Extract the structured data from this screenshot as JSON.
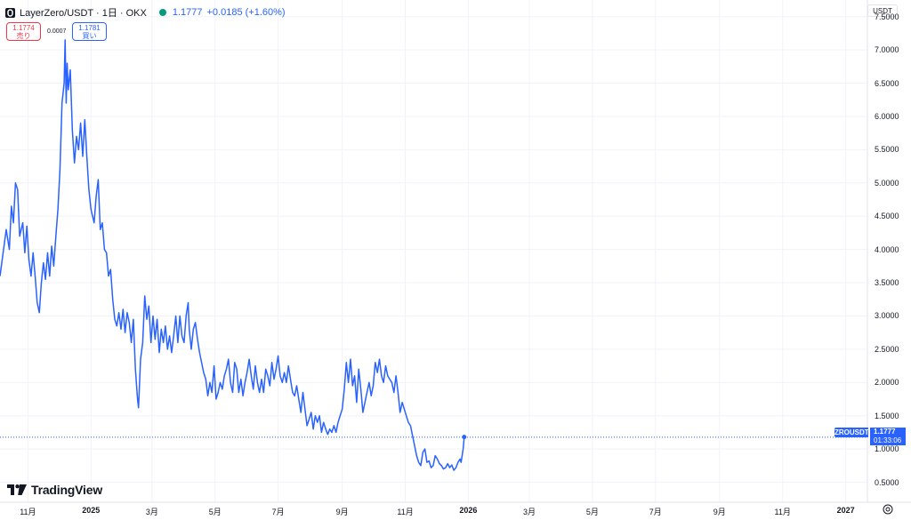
{
  "header": {
    "title": "LayerZero/USDT · 1日 · OKX",
    "last": "1.1777",
    "change": "+0.0185 (+1.60%)"
  },
  "trade": {
    "sell_price": "1.1774",
    "sell_label": "売り",
    "spread": "0.0007",
    "buy_price": "1.1781",
    "buy_label": "買い"
  },
  "price_scale": {
    "currency": "USDT"
  },
  "price_tag": {
    "symbol": "ZROUSDT",
    "price": "1.1777",
    "countdown": "01:33:06"
  },
  "branding": {
    "name": "TradingView"
  },
  "colors": {
    "line": "#2962ff",
    "grid": "#f0f3fa",
    "sell": "#f23645",
    "buy": "#2962ff",
    "live": "#089981"
  },
  "chart_data": {
    "type": "line",
    "symbol": "ZROUSDT",
    "timeframe": "1日",
    "exchange": "OKX",
    "y_axis": {
      "range": [
        0.2,
        7.75
      ],
      "ticks": [
        "0.5000",
        "1.0000",
        "1.5000",
        "2.0000",
        "2.5000",
        "3.0000",
        "3.5000",
        "4.0000",
        "4.5000",
        "5.0000",
        "5.5000",
        "6.0000",
        "6.5000",
        "7.0000",
        "7.5000"
      ]
    },
    "x_axis": {
      "range": [
        "2024-10-05",
        "2027-01-22"
      ],
      "ticks": [
        {
          "date": "2024-11-01",
          "label": "11月",
          "bold": false
        },
        {
          "date": "2025-01-01",
          "label": "2025",
          "bold": true
        },
        {
          "date": "2025-03-01",
          "label": "3月",
          "bold": false
        },
        {
          "date": "2025-05-01",
          "label": "5月",
          "bold": false
        },
        {
          "date": "2025-07-01",
          "label": "7月",
          "bold": false
        },
        {
          "date": "2025-09-01",
          "label": "9月",
          "bold": false
        },
        {
          "date": "2025-11-01",
          "label": "11月",
          "bold": false
        },
        {
          "date": "2026-01-01",
          "label": "2026",
          "bold": true
        },
        {
          "date": "2026-03-01",
          "label": "3月",
          "bold": false
        },
        {
          "date": "2026-05-01",
          "label": "5月",
          "bold": false
        },
        {
          "date": "2026-07-01",
          "label": "7月",
          "bold": false
        },
        {
          "date": "2026-09-01",
          "label": "9月",
          "bold": false
        },
        {
          "date": "2026-11-01",
          "label": "11月",
          "bold": false
        },
        {
          "date": "2027-01-01",
          "label": "2027",
          "bold": true
        }
      ]
    },
    "grid": true,
    "last_price_line": 1.1777,
    "series": [
      {
        "points": [
          [
            "2024-10-05",
            3.6
          ],
          [
            "2024-10-08",
            3.95
          ],
          [
            "2024-10-11",
            4.3
          ],
          [
            "2024-10-14",
            4.0
          ],
          [
            "2024-10-16",
            4.65
          ],
          [
            "2024-10-18",
            4.4
          ],
          [
            "2024-10-20",
            5.0
          ],
          [
            "2024-10-22",
            4.9
          ],
          [
            "2024-10-24",
            4.2
          ],
          [
            "2024-10-27",
            4.4
          ],
          [
            "2024-10-29",
            3.95
          ],
          [
            "2024-10-31",
            4.35
          ],
          [
            "2024-11-02",
            3.85
          ],
          [
            "2024-11-04",
            3.6
          ],
          [
            "2024-11-06",
            3.95
          ],
          [
            "2024-11-08",
            3.6
          ],
          [
            "2024-11-10",
            3.2
          ],
          [
            "2024-11-12",
            3.05
          ],
          [
            "2024-11-14",
            3.5
          ],
          [
            "2024-11-16",
            3.8
          ],
          [
            "2024-11-18",
            3.55
          ],
          [
            "2024-11-20",
            3.95
          ],
          [
            "2024-11-22",
            3.6
          ],
          [
            "2024-11-24",
            4.05
          ],
          [
            "2024-11-26",
            3.75
          ],
          [
            "2024-11-28",
            4.2
          ],
          [
            "2024-11-30",
            4.6
          ],
          [
            "2024-12-02",
            5.2
          ],
          [
            "2024-12-04",
            6.2
          ],
          [
            "2024-12-06",
            6.5
          ],
          [
            "2024-12-07",
            7.15
          ],
          [
            "2024-12-08",
            6.2
          ],
          [
            "2024-12-09",
            6.8
          ],
          [
            "2024-12-10",
            6.4
          ],
          [
            "2024-12-12",
            6.7
          ],
          [
            "2024-12-14",
            5.8
          ],
          [
            "2024-12-16",
            5.3
          ],
          [
            "2024-12-18",
            5.7
          ],
          [
            "2024-12-20",
            5.5
          ],
          [
            "2024-12-22",
            5.9
          ],
          [
            "2024-12-24",
            5.4
          ],
          [
            "2024-12-26",
            5.95
          ],
          [
            "2024-12-28",
            5.4
          ],
          [
            "2024-12-30",
            4.9
          ],
          [
            "2025-01-01",
            4.6
          ],
          [
            "2025-01-04",
            4.4
          ],
          [
            "2025-01-06",
            4.8
          ],
          [
            "2025-01-08",
            5.05
          ],
          [
            "2025-01-10",
            4.3
          ],
          [
            "2025-01-12",
            4.4
          ],
          [
            "2025-01-14",
            4.0
          ],
          [
            "2025-01-16",
            3.95
          ],
          [
            "2025-01-18",
            3.6
          ],
          [
            "2025-01-20",
            3.7
          ],
          [
            "2025-01-22",
            3.25
          ],
          [
            "2025-01-24",
            2.95
          ],
          [
            "2025-01-26",
            2.85
          ],
          [
            "2025-01-28",
            3.05
          ],
          [
            "2025-01-30",
            2.8
          ],
          [
            "2025-02-01",
            3.1
          ],
          [
            "2025-02-03",
            2.75
          ],
          [
            "2025-02-05",
            3.05
          ],
          [
            "2025-02-07",
            2.9
          ],
          [
            "2025-02-09",
            2.6
          ],
          [
            "2025-02-11",
            2.95
          ],
          [
            "2025-02-13",
            2.2
          ],
          [
            "2025-02-15",
            1.75
          ],
          [
            "2025-02-16",
            1.62
          ],
          [
            "2025-02-18",
            2.35
          ],
          [
            "2025-02-20",
            2.6
          ],
          [
            "2025-02-22",
            3.3
          ],
          [
            "2025-02-24",
            2.95
          ],
          [
            "2025-02-26",
            3.15
          ],
          [
            "2025-02-28",
            2.6
          ],
          [
            "2025-03-02",
            3.0
          ],
          [
            "2025-03-04",
            2.65
          ],
          [
            "2025-03-06",
            2.95
          ],
          [
            "2025-03-08",
            2.45
          ],
          [
            "2025-03-10",
            2.8
          ],
          [
            "2025-03-12",
            2.6
          ],
          [
            "2025-03-14",
            2.85
          ],
          [
            "2025-03-16",
            2.5
          ],
          [
            "2025-03-18",
            2.7
          ],
          [
            "2025-03-20",
            2.45
          ],
          [
            "2025-03-22",
            2.7
          ],
          [
            "2025-03-24",
            3.0
          ],
          [
            "2025-03-26",
            2.6
          ],
          [
            "2025-03-28",
            3.0
          ],
          [
            "2025-03-30",
            2.7
          ],
          [
            "2025-04-01",
            2.6
          ],
          [
            "2025-04-03",
            3.0
          ],
          [
            "2025-04-05",
            3.2
          ],
          [
            "2025-04-06",
            2.8
          ],
          [
            "2025-04-08",
            2.5
          ],
          [
            "2025-04-10",
            2.8
          ],
          [
            "2025-04-12",
            2.9
          ],
          [
            "2025-04-14",
            2.65
          ],
          [
            "2025-04-16",
            2.45
          ],
          [
            "2025-04-18",
            2.3
          ],
          [
            "2025-04-20",
            2.15
          ],
          [
            "2025-04-22",
            2.05
          ],
          [
            "2025-04-24",
            1.8
          ],
          [
            "2025-04-26",
            2.0
          ],
          [
            "2025-04-28",
            1.85
          ],
          [
            "2025-04-30",
            2.25
          ],
          [
            "2025-05-02",
            1.75
          ],
          [
            "2025-05-04",
            1.85
          ],
          [
            "2025-05-06",
            2.0
          ],
          [
            "2025-05-08",
            1.9
          ],
          [
            "2025-05-10",
            2.1
          ],
          [
            "2025-05-12",
            2.2
          ],
          [
            "2025-05-14",
            2.35
          ],
          [
            "2025-05-16",
            2.0
          ],
          [
            "2025-05-18",
            1.85
          ],
          [
            "2025-05-20",
            2.3
          ],
          [
            "2025-05-22",
            2.2
          ],
          [
            "2025-05-24",
            1.85
          ],
          [
            "2025-05-26",
            2.05
          ],
          [
            "2025-05-28",
            1.8
          ],
          [
            "2025-05-30",
            2.0
          ],
          [
            "2025-06-01",
            2.15
          ],
          [
            "2025-06-03",
            2.35
          ],
          [
            "2025-06-05",
            2.1
          ],
          [
            "2025-06-07",
            1.9
          ],
          [
            "2025-06-09",
            2.25
          ],
          [
            "2025-06-11",
            2.0
          ],
          [
            "2025-06-13",
            1.85
          ],
          [
            "2025-06-15",
            2.05
          ],
          [
            "2025-06-17",
            1.85
          ],
          [
            "2025-06-19",
            2.2
          ],
          [
            "2025-06-21",
            2.1
          ],
          [
            "2025-06-23",
            1.95
          ],
          [
            "2025-06-25",
            2.3
          ],
          [
            "2025-06-27",
            2.05
          ],
          [
            "2025-06-29",
            2.2
          ],
          [
            "2025-07-01",
            2.4
          ],
          [
            "2025-07-03",
            2.1
          ],
          [
            "2025-07-05",
            2.0
          ],
          [
            "2025-07-07",
            2.15
          ],
          [
            "2025-07-09",
            2.0
          ],
          [
            "2025-07-11",
            2.25
          ],
          [
            "2025-07-13",
            2.05
          ],
          [
            "2025-07-15",
            1.85
          ],
          [
            "2025-07-17",
            1.8
          ],
          [
            "2025-07-19",
            1.95
          ],
          [
            "2025-07-21",
            1.75
          ],
          [
            "2025-07-23",
            1.55
          ],
          [
            "2025-07-25",
            1.85
          ],
          [
            "2025-07-27",
            1.6
          ],
          [
            "2025-07-29",
            1.35
          ],
          [
            "2025-07-31",
            1.45
          ],
          [
            "2025-08-02",
            1.55
          ],
          [
            "2025-08-04",
            1.3
          ],
          [
            "2025-08-06",
            1.5
          ],
          [
            "2025-08-08",
            1.4
          ],
          [
            "2025-08-10",
            1.5
          ],
          [
            "2025-08-12",
            1.25
          ],
          [
            "2025-08-14",
            1.4
          ],
          [
            "2025-08-16",
            1.3
          ],
          [
            "2025-08-18",
            1.22
          ],
          [
            "2025-08-20",
            1.3
          ],
          [
            "2025-08-22",
            1.25
          ],
          [
            "2025-08-24",
            1.35
          ],
          [
            "2025-08-26",
            1.25
          ],
          [
            "2025-08-28",
            1.4
          ],
          [
            "2025-08-30",
            1.5
          ],
          [
            "2025-09-01",
            1.6
          ],
          [
            "2025-09-03",
            1.9
          ],
          [
            "2025-09-05",
            2.3
          ],
          [
            "2025-09-07",
            2.0
          ],
          [
            "2025-09-09",
            2.35
          ],
          [
            "2025-09-11",
            1.95
          ],
          [
            "2025-09-13",
            2.1
          ],
          [
            "2025-09-15",
            1.7
          ],
          [
            "2025-09-17",
            2.2
          ],
          [
            "2025-09-19",
            1.9
          ],
          [
            "2025-09-21",
            1.55
          ],
          [
            "2025-09-23",
            1.7
          ],
          [
            "2025-09-25",
            1.85
          ],
          [
            "2025-09-27",
            2.0
          ],
          [
            "2025-09-29",
            1.8
          ],
          [
            "2025-10-01",
            1.95
          ],
          [
            "2025-10-03",
            2.3
          ],
          [
            "2025-10-05",
            2.15
          ],
          [
            "2025-10-07",
            2.35
          ],
          [
            "2025-10-09",
            2.1
          ],
          [
            "2025-10-11",
            2.0
          ],
          [
            "2025-10-13",
            2.25
          ],
          [
            "2025-10-15",
            2.1
          ],
          [
            "2025-10-17",
            2.05
          ],
          [
            "2025-10-19",
            2.0
          ],
          [
            "2025-10-21",
            1.85
          ],
          [
            "2025-10-23",
            2.1
          ],
          [
            "2025-10-25",
            1.85
          ],
          [
            "2025-10-27",
            1.55
          ],
          [
            "2025-10-29",
            1.7
          ],
          [
            "2025-10-31",
            1.6
          ],
          [
            "2025-11-02",
            1.5
          ],
          [
            "2025-11-04",
            1.4
          ],
          [
            "2025-11-06",
            1.35
          ],
          [
            "2025-11-08",
            1.2
          ],
          [
            "2025-11-10",
            1.05
          ],
          [
            "2025-11-12",
            0.9
          ],
          [
            "2025-11-14",
            0.8
          ],
          [
            "2025-11-16",
            0.75
          ],
          [
            "2025-11-18",
            0.95
          ],
          [
            "2025-11-20",
            1.0
          ],
          [
            "2025-11-22",
            0.8
          ],
          [
            "2025-11-24",
            0.82
          ],
          [
            "2025-11-26",
            0.72
          ],
          [
            "2025-11-28",
            0.75
          ],
          [
            "2025-11-30",
            0.9
          ],
          [
            "2025-12-02",
            0.85
          ],
          [
            "2025-12-04",
            0.78
          ],
          [
            "2025-12-06",
            0.75
          ],
          [
            "2025-12-08",
            0.7
          ],
          [
            "2025-12-10",
            0.72
          ],
          [
            "2025-12-12",
            0.78
          ],
          [
            "2025-12-14",
            0.72
          ],
          [
            "2025-12-16",
            0.76
          ],
          [
            "2025-12-18",
            0.68
          ],
          [
            "2025-12-20",
            0.72
          ],
          [
            "2025-12-22",
            0.8
          ],
          [
            "2025-12-24",
            0.85
          ],
          [
            "2025-12-25",
            0.8
          ],
          [
            "2025-12-27",
            1.0
          ],
          [
            "2025-12-28",
            1.18
          ]
        ]
      }
    ]
  }
}
